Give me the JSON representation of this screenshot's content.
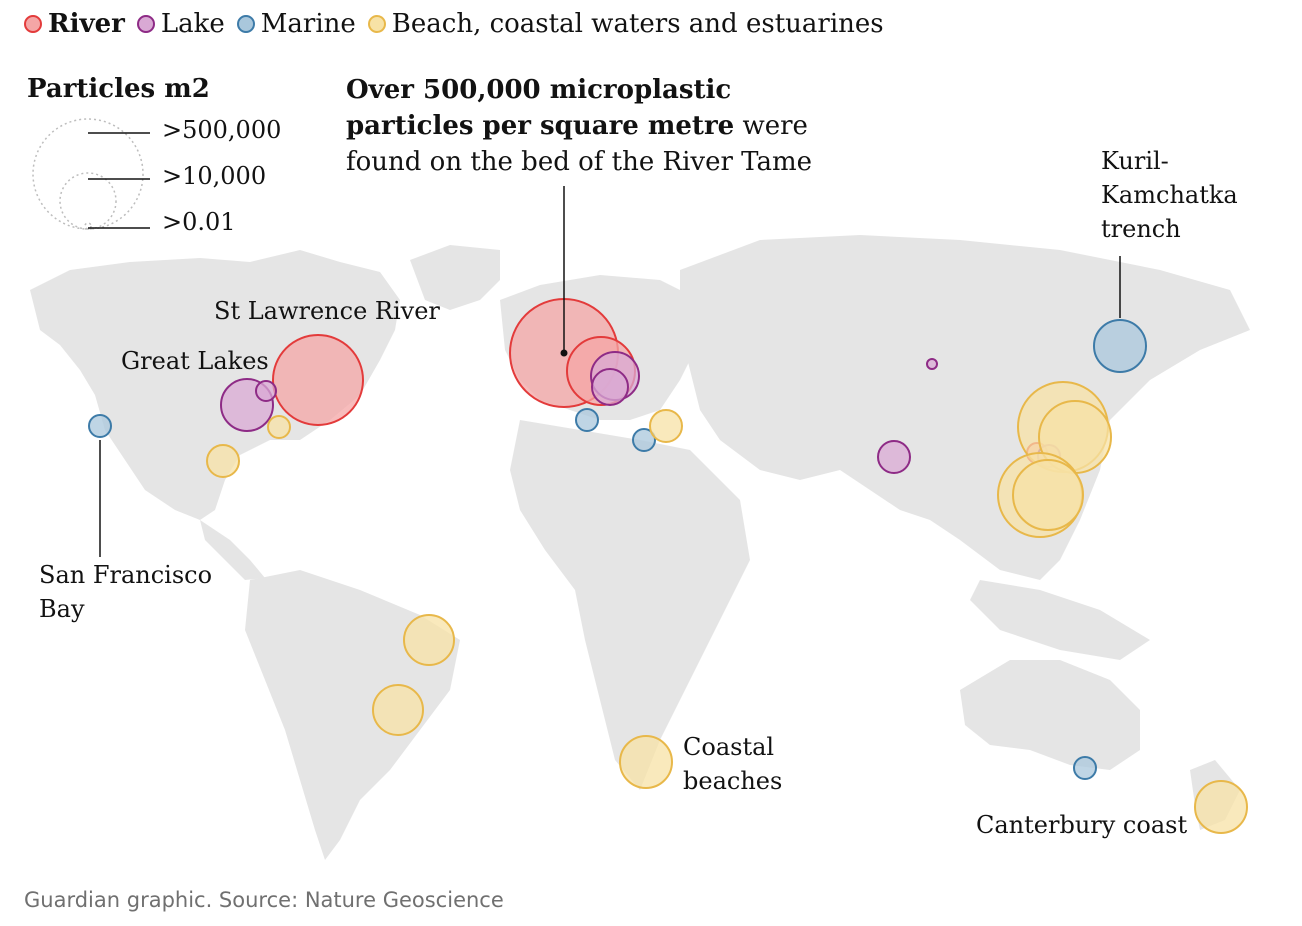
{
  "legend": {
    "items": [
      {
        "label": "River",
        "fill": "#f4a6a6",
        "stroke": "#e33b3b",
        "bold": true
      },
      {
        "label": "Lake",
        "fill": "#d9a9d4",
        "stroke": "#8e2b86",
        "bold": false
      },
      {
        "label": "Marine",
        "fill": "#a9c7dc",
        "stroke": "#3d7ba8",
        "bold": false
      },
      {
        "label": "Beach, coastal waters and estuarines",
        "fill": "#f7e2a6",
        "stroke": "#e8b84a",
        "bold": false
      }
    ]
  },
  "size_legend": {
    "title": "Particles m2",
    "labels": [
      ">500,000",
      ">10,000",
      ">0.01"
    ]
  },
  "headline": {
    "bold": "Over 500,000 microplastic particles per square metre",
    "rest": " were found on the bed of the River Tame"
  },
  "labels": {
    "st_lawrence": "St Lawrence River",
    "great_lakes": "Great Lakes",
    "san_francisco": [
      "San Francisco",
      "Bay"
    ],
    "kuril": [
      "Kuril-",
      "Kamchatka",
      "trench"
    ],
    "coastal": [
      "Coastal",
      "beaches"
    ],
    "canterbury": "Canterbury coast"
  },
  "source": "Guardian graphic. Source: Nature Geoscience",
  "colors": {
    "land": "#e5e5e5",
    "river": {
      "fill": "#f4a6a6",
      "stroke": "#e33b3b"
    },
    "lake": {
      "fill": "#d9a9d4",
      "stroke": "#8e2b86"
    },
    "marine": {
      "fill": "#a9c7dc",
      "stroke": "#3d7ba8"
    },
    "beach": {
      "fill": "#f7e2a6",
      "stroke": "#e8b84a"
    }
  }
}
